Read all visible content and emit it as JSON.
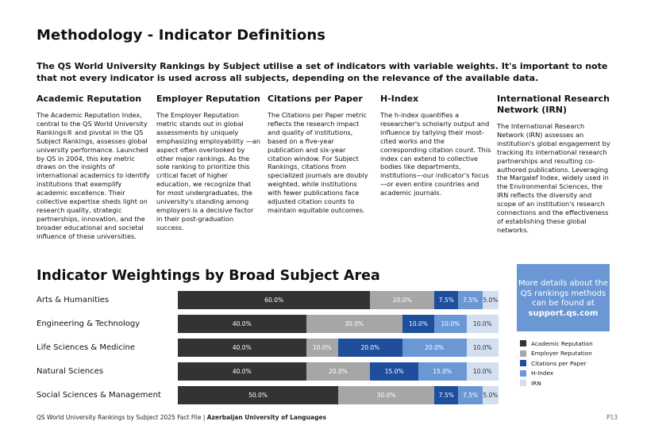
{
  "title": "Methodology - Indicator Definitions",
  "intro": "The QS World University Rankings by Subject utilise a set of indicators with variable weights. It's important to note that not every indicator is used across all subjects, depending on the  relevance of the available data.",
  "indicators": [
    {
      "heading": "Academic Reputation",
      "body": "The Academic Reputation Index, central to the QS World University Rankings® and pivotal in the QS Subject Rankings, assesses global university performance. Launched by QS in 2004, this key metric draws on the insights of international academics to identify institutions that exemplify academic excellence. Their collective expertise sheds light on research quality, strategic partnerships, innovation, and the broader educational and societal influence of these universities."
    },
    {
      "heading": "Employer Reputation",
      "body": "The Employer Reputation metric stands out in global assessments by uniquely emphasizing employability —an aspect often overlooked by other major rankings. As the sole ranking to prioritize this critical facet of higher education, we recognize that for most undergraduates, the university's standing among employers is a decisive factor in their post-graduation success."
    },
    {
      "heading": "Citations per Paper",
      "body": "The Citations per Paper metric reflects the research impact and quality of institutions, based on a five-year publication and six-year citation window. For Subject Rankings, citations from specialized journals are doubly weighted, while institutions with fewer publications face adjusted citation counts to maintain equitable outcomes."
    },
    {
      "heading": "H-Index",
      "body": "The h-index quantifies a researcher's scholarly output and influence by tallying their most-cited works and the corresponding citation count. This index can extend to collective bodies like departments, institutions—our indicator's focus—or even entire countries and academic journals."
    },
    {
      "heading": "International Research Network (IRN)",
      "body": "The International Research Network (IRN) assesses an institution's global engagement by tracking its international research partnerships and resulting co-authored publications. Leveraging the Margalef Index, widely used in the Environmental Sciences, the IRN reflects the diversity and scope of an institution's research connections and the effectiveness of establishing these global networks."
    }
  ],
  "weightings_title": "Indicator Weightings by Broad Subject Area",
  "info_box": {
    "text": "More details about the QS rankings methods can be found at",
    "link": "support.qs.com"
  },
  "colors": {
    "academic": "#333333",
    "employer": "#a6a6a6",
    "citations": "#1f4e9c",
    "hindex": "#6b98d4",
    "irn": "#d3dff0"
  },
  "chart_data": {
    "type": "bar",
    "orientation": "horizontal-stacked",
    "unit": "%",
    "categories": [
      "Arts & Humanities",
      "Engineering & Technology",
      "Life Sciences & Medicine",
      "Natural Sciences",
      "Social Sciences & Management"
    ],
    "series": [
      {
        "name": "Academic Reputation",
        "values": [
          60,
          40,
          40,
          40,
          50
        ],
        "labels": [
          "60.0%",
          "40.0%",
          "40.0%",
          "40.0%",
          "50.0%"
        ]
      },
      {
        "name": "Employer Reputation",
        "values": [
          20,
          30,
          10,
          20,
          30
        ],
        "labels": [
          "20.0%",
          "30.0%",
          "10.0%",
          "20.0%",
          "30.0%"
        ]
      },
      {
        "name": "Citations per Paper",
        "values": [
          7.5,
          10,
          20,
          15,
          7.5
        ],
        "labels": [
          "7.5%",
          "10.0%",
          "20.0%",
          "15.0%",
          "7.5%"
        ]
      },
      {
        "name": "H-Index",
        "values": [
          7.5,
          10,
          20,
          15,
          7.5
        ],
        "labels": [
          "7.5%",
          "10.0%",
          "20.0%",
          "15.0%",
          "7.5%"
        ]
      },
      {
        "name": "IRN",
        "values": [
          5,
          10,
          10,
          10,
          5
        ],
        "labels": [
          "5.0%",
          "10.0%",
          "10.0%",
          "10.0%",
          "5.0%"
        ]
      }
    ],
    "legend_position": "right"
  },
  "footer": {
    "text": "QS World University Rankings by Subject 2025 Fact File | ",
    "institution": "Azerbaijan University of Languages",
    "page": "P13"
  }
}
